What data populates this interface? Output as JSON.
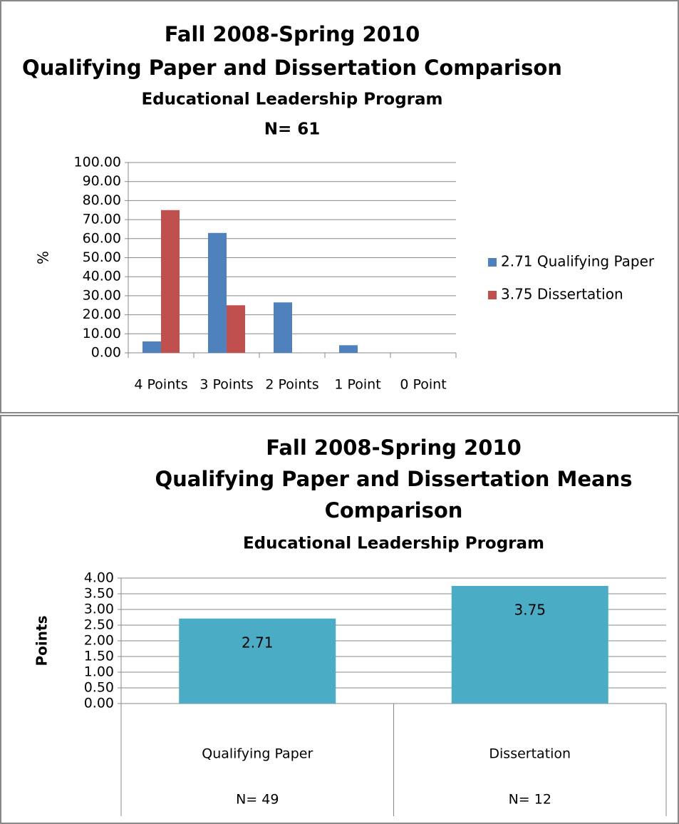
{
  "chart_data": [
    {
      "type": "bar",
      "title": [
        "Fall 2008-Spring 2010",
        "Qualifying Paper and Dissertation Comparison"
      ],
      "subtitle": [
        "Educational Leadership Program",
        "N= 61"
      ],
      "y_label": "%",
      "categories": [
        "4 Points",
        "3 Points",
        "2 Points",
        "1 Point",
        "0 Point"
      ],
      "series": [
        {
          "name": "2.71 Qualifying Paper",
          "color": "#4f81bd",
          "values": [
            6,
            63,
            26.5,
            4,
            0
          ]
        },
        {
          "name": "3.75 Dissertation",
          "color": "#c0504d",
          "values": [
            75,
            25,
            0,
            0,
            0
          ]
        }
      ],
      "ylim": [
        0,
        100
      ],
      "yticks": [
        {
          "value": 0,
          "label": "0.00"
        },
        {
          "value": 10,
          "label": "10.00"
        },
        {
          "value": 20,
          "label": "20.00"
        },
        {
          "value": 30,
          "label": "30.00"
        },
        {
          "value": 40,
          "label": "40.00"
        },
        {
          "value": 50,
          "label": "50.00"
        },
        {
          "value": 60,
          "label": "60.00"
        },
        {
          "value": 70,
          "label": "70.00"
        },
        {
          "value": 80,
          "label": "80.00"
        },
        {
          "value": 90,
          "label": "90.00"
        },
        {
          "value": 100,
          "label": "100.00"
        }
      ],
      "grid": true,
      "legend": "right"
    },
    {
      "type": "bar",
      "title": [
        "Fall 2008-Spring 2010",
        "Qualifying Paper and Dissertation Means",
        "Comparison"
      ],
      "subtitle": [
        "Educational Leadership Program"
      ],
      "y_label": "Points",
      "categories": [
        "Qualifying Paper",
        "Dissertation"
      ],
      "category_counts": [
        "N= 49",
        "N= 12"
      ],
      "series": [
        {
          "color": "#4bacc6",
          "values": [
            2.71,
            3.75
          ]
        }
      ],
      "ylim": [
        0,
        4
      ],
      "yticks": [
        {
          "value": 0,
          "label": "0.00"
        },
        {
          "value": 0.5,
          "label": "0.50"
        },
        {
          "value": 1,
          "label": "1.00"
        },
        {
          "value": 1.5,
          "label": "1.50"
        },
        {
          "value": 2,
          "label": "2.00"
        },
        {
          "value": 2.5,
          "label": "2.50"
        },
        {
          "value": 3,
          "label": "3.00"
        },
        {
          "value": 3.5,
          "label": "3.50"
        },
        {
          "value": 4,
          "label": "4.00"
        }
      ],
      "grid": true,
      "data_labels": true
    }
  ]
}
